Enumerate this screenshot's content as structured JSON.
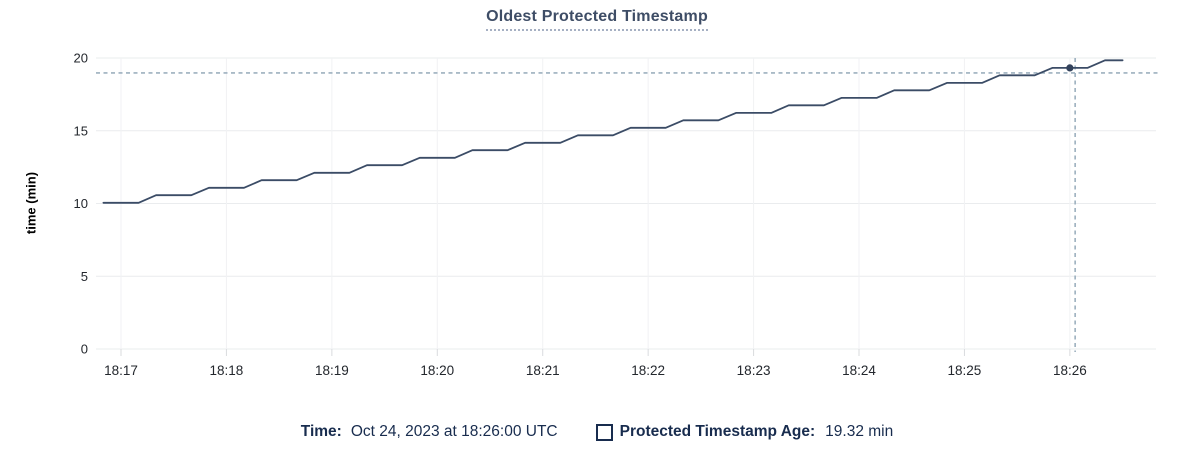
{
  "page": {
    "title": "Oldest Protected Timestamp"
  },
  "legend": {
    "time_label": "Time:",
    "time_value": "Oct 24, 2023 at 18:26:00 UTC",
    "series_checkbox_state": "unchecked",
    "series_label": "Protected Timestamp Age:",
    "series_value": "19.32 min"
  },
  "colors": {
    "title_text": "#3e4d66",
    "title_underline": "#a6b0c3",
    "series_line": "#3b4c66",
    "highlight_dot": "#33425c",
    "crosshair": "#9db0bf",
    "grid_h": "#eaecee",
    "grid_v": "#f1f2f4",
    "axis_tick_mark": "#d9dbde",
    "axis_text": "#23272d",
    "legend_text": "#182c4e"
  },
  "chart_data": {
    "type": "line",
    "title": "Oldest Protected Timestamp",
    "xlabel": "",
    "ylabel": "time (min)",
    "ylim": [
      0,
      20
    ],
    "y_ticks": [
      0,
      5,
      10,
      15,
      20
    ],
    "x_ticks": [
      "18:17",
      "18:18",
      "18:19",
      "18:20",
      "18:21",
      "18:22",
      "18:23",
      "18:24",
      "18:25",
      "18:26"
    ],
    "grid": true,
    "legend_position": "bottom",
    "legend_entries": [
      "Protected Timestamp Age"
    ],
    "series": [
      {
        "name": "Protected Timestamp Age",
        "unit": "min",
        "points": [
          [
            "18:16:50",
            10.05
          ],
          [
            "18:17:00",
            10.05
          ],
          [
            "18:17:10",
            10.05
          ],
          [
            "18:17:20",
            10.57
          ],
          [
            "18:17:30",
            10.57
          ],
          [
            "18:17:40",
            10.57
          ],
          [
            "18:17:50",
            11.08
          ],
          [
            "18:18:00",
            11.08
          ],
          [
            "18:18:10",
            11.08
          ],
          [
            "18:18:20",
            11.6
          ],
          [
            "18:18:30",
            11.6
          ],
          [
            "18:18:40",
            11.6
          ],
          [
            "18:18:50",
            12.11
          ],
          [
            "18:19:00",
            12.11
          ],
          [
            "18:19:10",
            12.11
          ],
          [
            "18:19:20",
            12.63
          ],
          [
            "18:19:30",
            12.63
          ],
          [
            "18:19:40",
            12.63
          ],
          [
            "18:19:50",
            13.14
          ],
          [
            "18:20:00",
            13.14
          ],
          [
            "18:20:10",
            13.14
          ],
          [
            "18:20:20",
            13.66
          ],
          [
            "18:20:30",
            13.66
          ],
          [
            "18:20:40",
            13.66
          ],
          [
            "18:20:50",
            14.17
          ],
          [
            "18:21:00",
            14.17
          ],
          [
            "18:21:10",
            14.17
          ],
          [
            "18:21:20",
            14.69
          ],
          [
            "18:21:30",
            14.69
          ],
          [
            "18:21:40",
            14.69
          ],
          [
            "18:21:50",
            15.2
          ],
          [
            "18:22:00",
            15.2
          ],
          [
            "18:22:10",
            15.2
          ],
          [
            "18:22:20",
            15.72
          ],
          [
            "18:22:30",
            15.72
          ],
          [
            "18:22:40",
            15.72
          ],
          [
            "18:22:50",
            16.23
          ],
          [
            "18:23:00",
            16.23
          ],
          [
            "18:23:10",
            16.23
          ],
          [
            "18:23:20",
            16.75
          ],
          [
            "18:23:30",
            16.75
          ],
          [
            "18:23:40",
            16.75
          ],
          [
            "18:23:50",
            17.26
          ],
          [
            "18:24:00",
            17.26
          ],
          [
            "18:24:10",
            17.26
          ],
          [
            "18:24:20",
            17.78
          ],
          [
            "18:24:30",
            17.78
          ],
          [
            "18:24:40",
            17.78
          ],
          [
            "18:24:50",
            18.29
          ],
          [
            "18:25:00",
            18.29
          ],
          [
            "18:25:10",
            18.29
          ],
          [
            "18:25:20",
            18.81
          ],
          [
            "18:25:30",
            18.81
          ],
          [
            "18:25:40",
            18.81
          ],
          [
            "18:25:50",
            19.32
          ],
          [
            "18:26:00",
            19.32
          ],
          [
            "18:26:10",
            19.32
          ],
          [
            "18:26:20",
            19.84
          ],
          [
            "18:26:30",
            19.84
          ]
        ]
      }
    ],
    "highlighted_point": {
      "time": "18:26:00",
      "value": 19.32
    },
    "cursor": {
      "time": "18:26:03",
      "value": 18.97
    }
  }
}
